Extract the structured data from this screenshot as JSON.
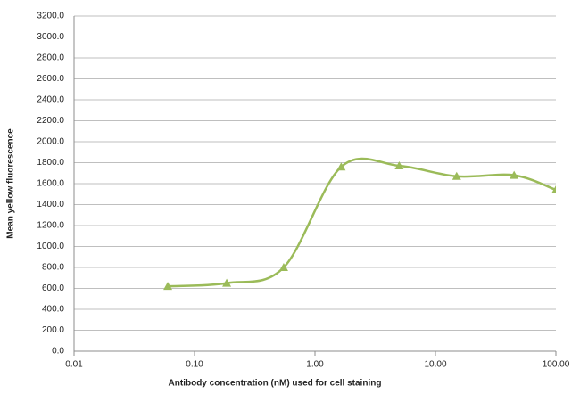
{
  "chart_data": {
    "type": "line",
    "x_label": "Antibody concentration (nM)  used for cell staining",
    "y_label": "Mean yellow fluorescence",
    "x_log": true,
    "grid": true,
    "x": [
      0.06,
      0.185,
      0.55,
      1.65,
      5,
      15,
      45,
      100
    ],
    "series": [
      {
        "color": "#9bbb59",
        "values": [
          620,
          650,
          800,
          1760,
          1770,
          1670,
          1680,
          1540
        ]
      }
    ],
    "xlim": [
      0.01,
      100
    ],
    "xticks": [
      0.01,
      {
        "value": 0.1,
        "label": "0.10"
      },
      {
        "value": 1,
        "label": "1.00"
      },
      {
        "value": 10,
        "label": "10.00"
      },
      {
        "value": 100,
        "label": "100.00"
      }
    ],
    "ylim": [
      0,
      3200
    ],
    "yticks": [
      {
        "value": 0,
        "label": "0.0"
      },
      {
        "value": 200,
        "label": "200.0"
      },
      {
        "value": 400,
        "label": "400.0"
      },
      {
        "value": 600,
        "label": "600.0"
      },
      {
        "value": 800,
        "label": "800.0"
      },
      {
        "value": 1000,
        "label": "1000.0"
      },
      {
        "value": 1200,
        "label": "1200.0"
      },
      {
        "value": 1400,
        "label": "1400.0"
      },
      {
        "value": 1600,
        "label": "1600.0"
      },
      {
        "value": 1800,
        "label": "1800.0"
      },
      {
        "value": 2000,
        "label": "2000.0"
      },
      {
        "value": 2200,
        "label": "2200.0"
      },
      {
        "value": 2400,
        "label": "2400.0"
      },
      {
        "value": 2600,
        "label": "2600.0"
      },
      {
        "value": 2800,
        "label": "2800.0"
      },
      {
        "value": 3000,
        "label": "3000.0"
      },
      {
        "value": 3200,
        "label": "3200.0"
      }
    ]
  }
}
